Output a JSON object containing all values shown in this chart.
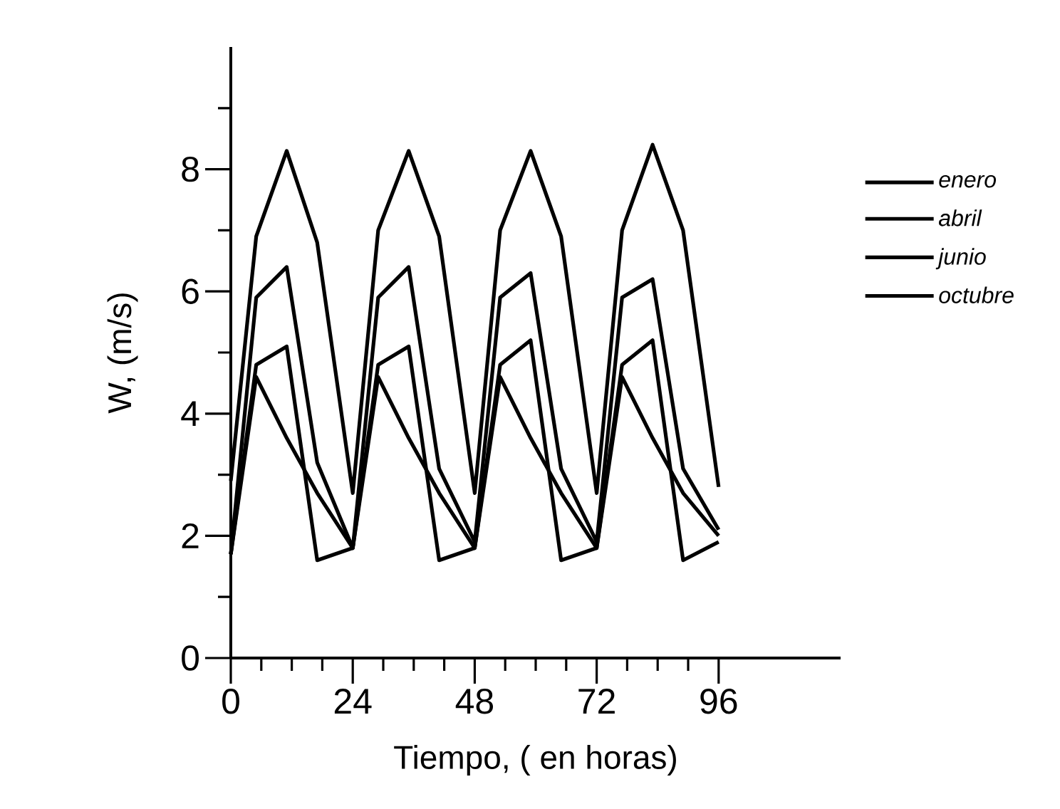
{
  "chart_data": {
    "type": "line",
    "xlabel": "Tiempo, ( en horas)",
    "ylabel": "W, (m/s)",
    "x": [
      0,
      5,
      11,
      17,
      24,
      29,
      35,
      41,
      48,
      53,
      59,
      65,
      72,
      77,
      83,
      89,
      96
    ],
    "series": [
      {
        "name": "enero",
        "color": "#000000",
        "values": [
          2.9,
          6.9,
          8.3,
          6.8,
          2.7,
          7.0,
          8.3,
          6.9,
          2.7,
          7.0,
          8.3,
          6.9,
          2.7,
          7.0,
          8.4,
          7.0,
          2.8
        ]
      },
      {
        "name": "abril",
        "color": "#000000",
        "values": [
          1.7,
          5.9,
          6.4,
          3.2,
          1.8,
          5.9,
          6.4,
          3.1,
          1.9,
          5.9,
          6.3,
          3.1,
          1.9,
          5.9,
          6.2,
          3.1,
          2.1
        ]
      },
      {
        "name": "junio",
        "color": "#000000",
        "values": [
          1.7,
          4.8,
          5.1,
          1.6,
          1.8,
          4.8,
          5.1,
          1.6,
          1.8,
          4.8,
          5.2,
          1.6,
          1.8,
          4.8,
          5.2,
          1.6,
          1.9
        ]
      },
      {
        "name": "octubre",
        "color": "#000000",
        "values": [
          1.7,
          4.6,
          3.6,
          2.7,
          1.8,
          4.6,
          3.6,
          2.7,
          1.8,
          4.6,
          3.6,
          2.7,
          1.8,
          4.6,
          3.6,
          2.7,
          2.0
        ]
      }
    ],
    "xlim": [
      0,
      120
    ],
    "xticks": [
      0,
      {
        "value": 6,
        "label": null
      },
      {
        "value": 12,
        "label": null
      },
      {
        "value": 18,
        "label": null
      },
      24,
      {
        "value": 30,
        "label": null
      },
      {
        "value": 36,
        "label": null
      },
      {
        "value": 42,
        "label": null
      },
      48,
      {
        "value": 54,
        "label": null
      },
      {
        "value": 60,
        "label": null
      },
      {
        "value": 66,
        "label": null
      },
      72,
      {
        "value": 78,
        "label": null
      },
      {
        "value": 84,
        "label": null
      },
      {
        "value": 90,
        "label": null
      },
      96
    ],
    "ylim": [
      0,
      10
    ],
    "yticks": [
      0,
      {
        "value": 1,
        "label": null
      },
      2,
      {
        "value": 3,
        "label": null
      },
      4,
      {
        "value": 5,
        "label": null
      },
      6,
      {
        "value": 7,
        "label": null
      },
      8,
      {
        "value": 9,
        "label": null
      }
    ],
    "legend": "right",
    "marker": "none",
    "line_style": "solid",
    "grid": false
  }
}
